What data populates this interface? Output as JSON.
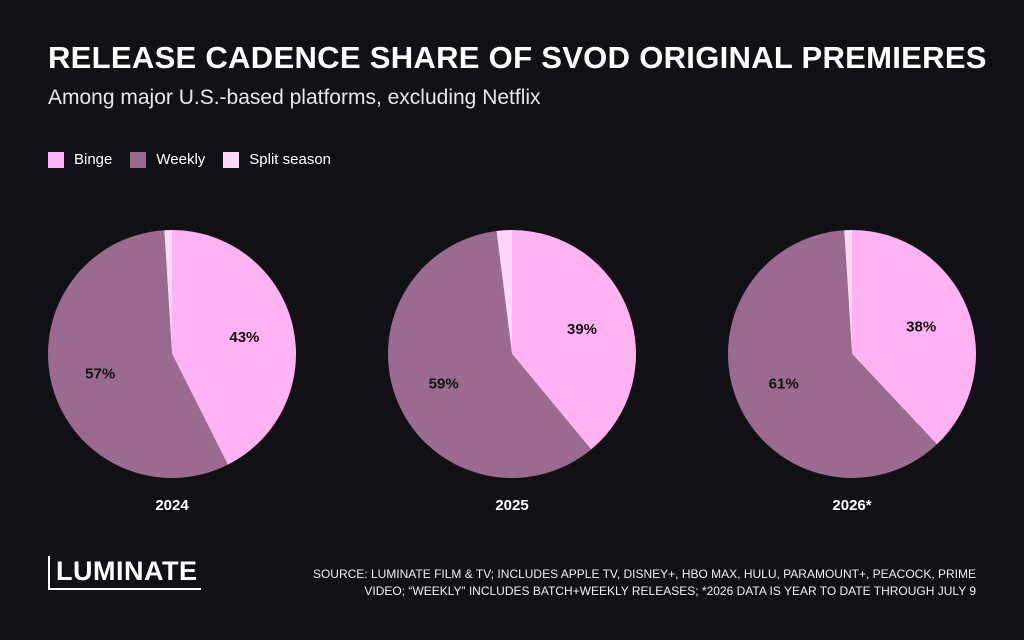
{
  "header": {
    "title": "RELEASE CADENCE SHARE OF SVOD ORIGINAL PREMIERES",
    "subtitle": "Among major U.S.-based platforms, excluding Netflix"
  },
  "legend": [
    {
      "label": "Binge",
      "color": "#ffb3f2"
    },
    {
      "label": "Weekly",
      "color": "#9a6b8f"
    },
    {
      "label": "Split season",
      "color": "#ffd9f7"
    }
  ],
  "chart_data": [
    {
      "type": "pie",
      "title": "2024",
      "slices": [
        {
          "label": "Binge",
          "value": 43,
          "display": "43%"
        },
        {
          "label": "Weekly",
          "value": 57,
          "display": "57%"
        },
        {
          "label": "Split season",
          "value": 1,
          "display": ""
        }
      ]
    },
    {
      "type": "pie",
      "title": "2025",
      "slices": [
        {
          "label": "Binge",
          "value": 39,
          "display": "39%"
        },
        {
          "label": "Weekly",
          "value": 59,
          "display": "59%"
        },
        {
          "label": "Split season",
          "value": 2,
          "display": ""
        }
      ]
    },
    {
      "type": "pie",
      "title": "2026*",
      "slices": [
        {
          "label": "Binge",
          "value": 38,
          "display": "38%"
        },
        {
          "label": "Weekly",
          "value": 61,
          "display": "61%"
        },
        {
          "label": "Split season",
          "value": 1,
          "display": ""
        }
      ]
    }
  ],
  "footer": {
    "brand": "LUMINATE",
    "source_line1": "SOURCE: LUMINATE FILM & TV; INCLUDES APPLE TV, DISNEY+, HBO MAX, HULU, PARAMOUNT+, PEACOCK,  PRIME",
    "source_line2": "VIDEO; “WEEKLY” INCLUDES BATCH+WEEKLY RELEASES; *2026 DATA IS YEAR TO DATE THROUGH JULY 9"
  }
}
